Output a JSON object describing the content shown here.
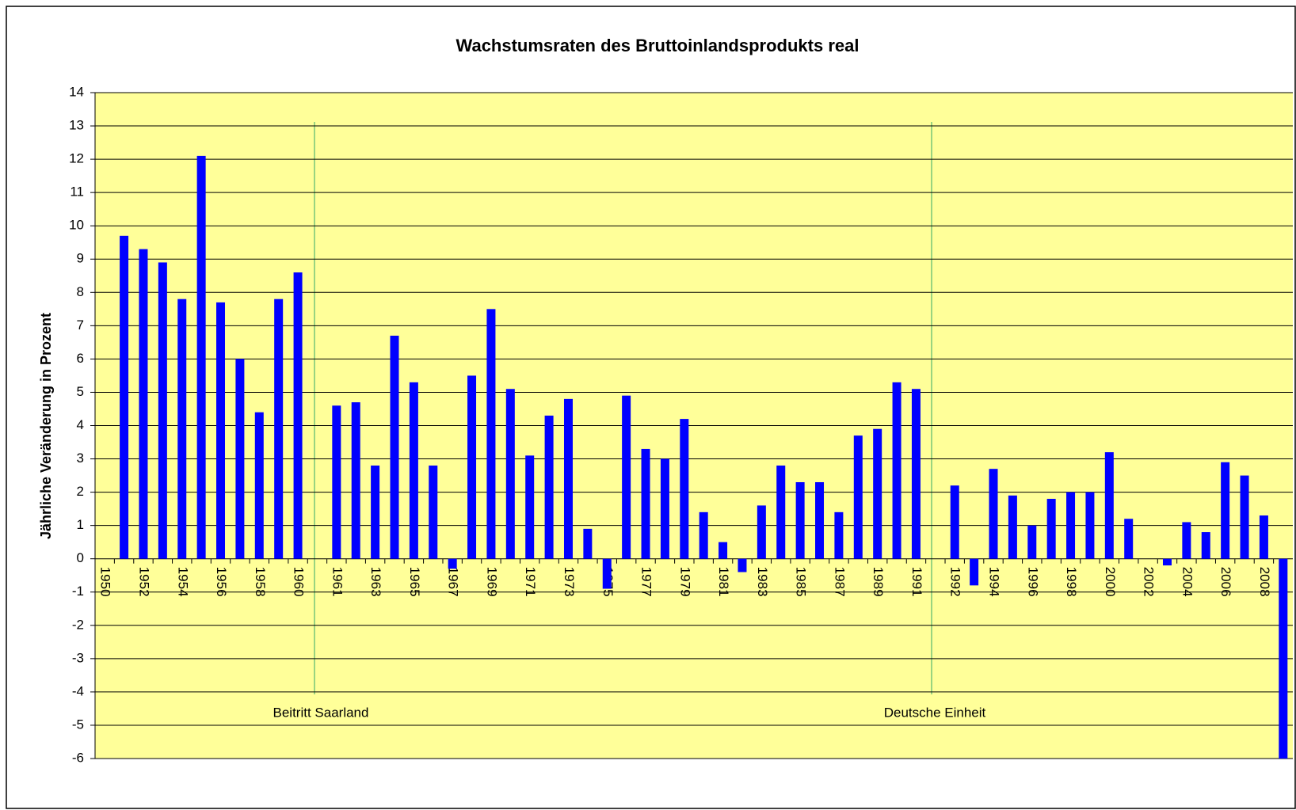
{
  "chart_data": {
    "type": "bar",
    "title": "Wachstumsraten des Bruttoinlandsprodukts real",
    "y_label": "Jährliche Veränderung in Prozent",
    "categories": [
      "1950",
      null,
      "1952",
      null,
      "1954",
      null,
      "1956",
      null,
      "1958",
      null,
      "1960",
      null,
      "1961",
      null,
      "1963",
      null,
      "1965",
      null,
      "1967",
      null,
      "1969",
      null,
      "1971",
      null,
      "1973",
      null,
      "1975",
      null,
      "1977",
      null,
      "1979",
      null,
      "1981",
      null,
      "1983",
      null,
      "1985",
      null,
      "1987",
      null,
      "1989",
      null,
      "1991",
      null,
      "1992",
      null,
      "1994",
      null,
      "1996",
      null,
      "1998",
      null,
      "2000",
      null,
      "2002",
      null,
      "2004",
      null,
      "2006",
      null,
      "2008",
      null
    ],
    "values": [
      null,
      9.7,
      9.3,
      8.9,
      7.8,
      12.1,
      7.7,
      6.0,
      4.4,
      7.8,
      8.6,
      null,
      4.6,
      4.7,
      2.8,
      6.7,
      5.3,
      2.8,
      -0.3,
      5.5,
      7.5,
      5.1,
      3.1,
      4.3,
      4.8,
      0.9,
      -0.9,
      4.9,
      3.3,
      3.0,
      4.2,
      1.4,
      0.5,
      -0.4,
      1.6,
      2.8,
      2.3,
      2.3,
      1.4,
      3.7,
      3.9,
      5.3,
      5.1,
      null,
      2.2,
      -0.8,
      2.7,
      1.9,
      1.0,
      1.8,
      2.0,
      2.0,
      3.2,
      1.2,
      0.0,
      -0.2,
      1.1,
      0.8,
      2.9,
      2.5,
      1.3,
      -6
    ],
    "color": "#0000ff",
    "ylim": [
      -6,
      14
    ],
    "yticks": [
      -6,
      -5,
      -4,
      -3,
      -2,
      -1,
      0,
      1,
      2,
      3,
      4,
      5,
      6,
      7,
      8,
      9,
      10,
      11,
      12,
      13,
      14
    ],
    "grid": true,
    "annotations": [
      "Beitritt Saarland",
      "Deutsche Einheit"
    ]
  }
}
